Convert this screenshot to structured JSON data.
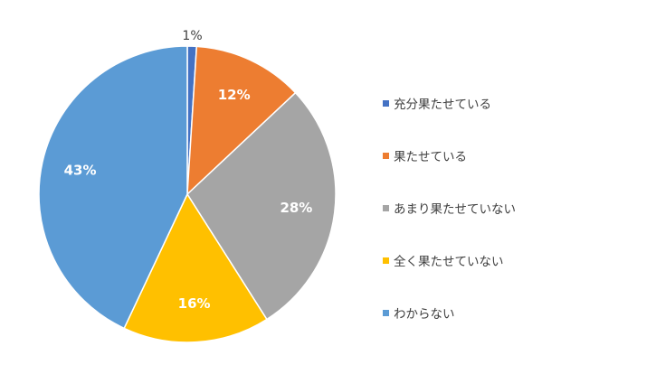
{
  "chart_data": {
    "type": "pie",
    "categories": [
      "充分果たせている",
      "果たせている",
      "あまり果たせていない",
      "全く果たせていない",
      "わからない"
    ],
    "values": [
      1,
      12,
      28,
      16,
      43
    ],
    "labels": [
      "1%",
      "12%",
      "28%",
      "16%",
      "43%"
    ],
    "colors": [
      "#4472C4",
      "#ED7D31",
      "#A5A5A5",
      "#FFC000",
      "#5B9BD5"
    ],
    "legend_position": "right",
    "start_angle": "top",
    "direction": "clockwise"
  },
  "legend": {
    "items": [
      {
        "label": "充分果たせている",
        "color": "#4472C4"
      },
      {
        "label": "果たせている",
        "color": "#ED7D31"
      },
      {
        "label": "あまり果たせていない",
        "color": "#A5A5A5"
      },
      {
        "label": "全く果たせていない",
        "color": "#FFC000"
      },
      {
        "label": "わからない",
        "color": "#5B9BD5"
      }
    ]
  }
}
